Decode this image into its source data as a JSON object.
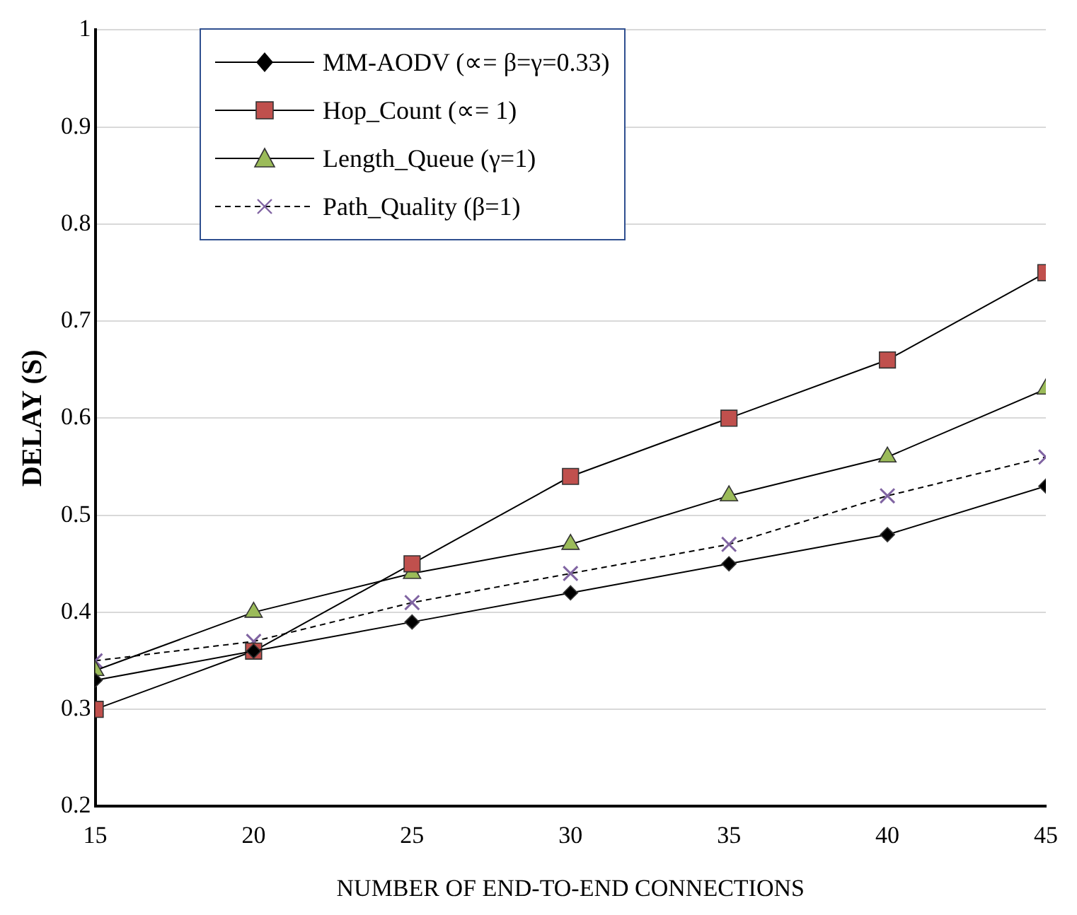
{
  "chart_data": {
    "type": "line",
    "xlabel": "NUMBER OF END-TO-END CONNECTIONS",
    "ylabel": "DELAY (S)",
    "x": [
      15,
      20,
      25,
      30,
      35,
      40,
      45
    ],
    "series": [
      {
        "name": "MM-AODV (∝= β=γ=0.33)",
        "color": "#000000",
        "marker": "diamond",
        "line_style": "solid",
        "values": [
          0.33,
          0.36,
          0.39,
          0.42,
          0.45,
          0.48,
          0.53
        ]
      },
      {
        "name": "Hop_Count (∝= 1)",
        "color": "#c0504d",
        "marker": "square",
        "line_style": "solid",
        "values": [
          0.3,
          0.36,
          0.45,
          0.54,
          0.6,
          0.66,
          0.75
        ]
      },
      {
        "name": "Length_Queue (γ=1)",
        "color": "#9bbb59",
        "marker": "triangle",
        "line_style": "solid",
        "values": [
          0.34,
          0.4,
          0.44,
          0.47,
          0.52,
          0.56,
          0.63
        ]
      },
      {
        "name": "Path_Quality (β=1)",
        "color": "#8064a2",
        "marker": "cross",
        "line_style": "dashed",
        "values": [
          0.35,
          0.37,
          0.41,
          0.44,
          0.47,
          0.52,
          0.56
        ]
      }
    ],
    "xlim": [
      15,
      45
    ],
    "xticks": [
      15,
      20,
      25,
      30,
      35,
      40,
      45
    ],
    "ylim": [
      0.2,
      1
    ],
    "yticks": [
      0.2,
      0.3,
      0.4,
      0.5,
      0.6,
      0.7,
      0.8,
      0.9,
      1
    ],
    "grid": "y",
    "legend": "top left"
  }
}
